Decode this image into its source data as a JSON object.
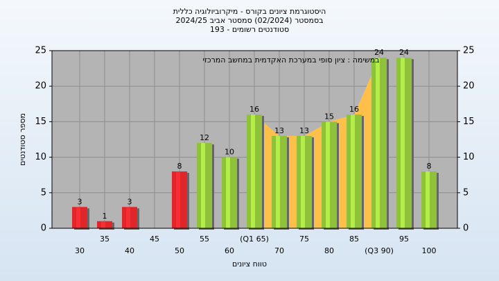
{
  "chart_data": {
    "type": "bar",
    "title": "היסטוגרמת ציונים בקורס - מיקרוביולוגיה כללית",
    "subtitle": "בסמסטר  (02/2024)  סמסטר אביב 2024/25",
    "subtitle2": "סטודנטים רשומים - 193",
    "annotation": "במשימה : ציון סופי במערכת האקדמית במחשב המרכזי",
    "ylabel": "מספר סטודנטים",
    "xlabel": "טווח ציונים",
    "categories": [
      "30",
      "35",
      "40",
      "45",
      "50",
      "55",
      "60",
      "(Q1 65)",
      "70",
      "75",
      "80",
      "85",
      "(Q3 90)",
      "95",
      "100"
    ],
    "values": [
      3,
      1,
      3,
      null,
      8,
      12,
      10,
      16,
      13,
      13,
      15,
      16,
      24,
      24,
      8
    ],
    "colors": [
      "#e0262b",
      "#e0262b",
      "#e0262b",
      "#e0262b",
      "#e0262b",
      "#8fc23a",
      "#8fc23a",
      "#8fc23a",
      "#8fc23a",
      "#8fc23a",
      "#8fc23a",
      "#8fc23a",
      "#8fc23a",
      "#8fc23a",
      "#8fc23a"
    ],
    "band_color": "#ffc04a",
    "ylim": [
      0,
      25
    ],
    "yticks": [
      0,
      5,
      10,
      15,
      20,
      25
    ],
    "y2lim": [
      0,
      25
    ],
    "y2ticks": [
      0,
      5,
      10,
      15,
      20,
      25
    ],
    "grid": true
  }
}
